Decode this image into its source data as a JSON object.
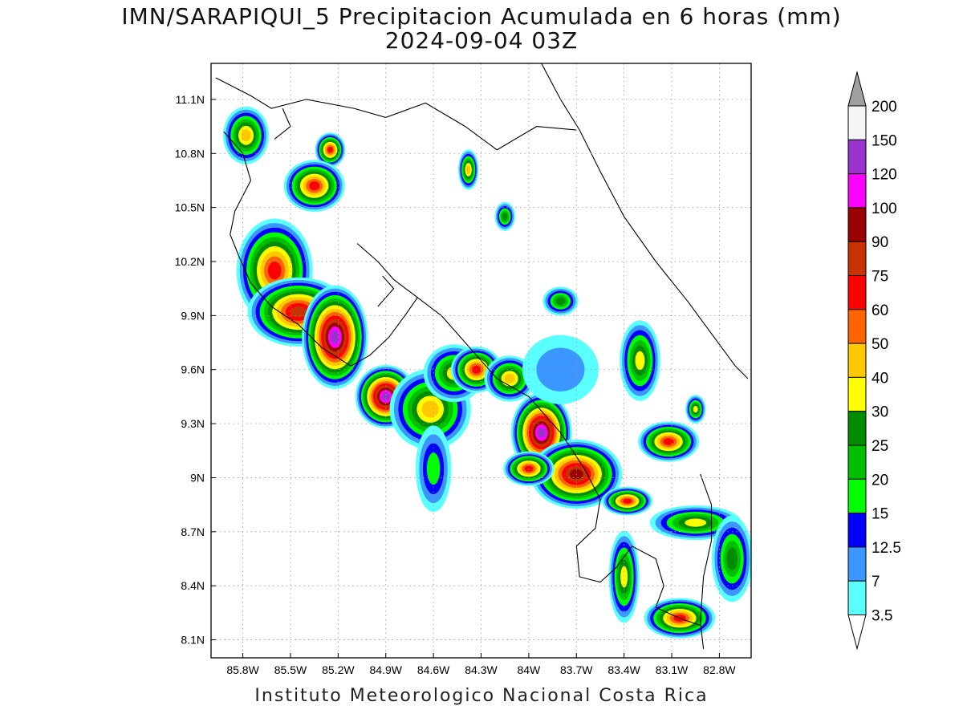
{
  "title": {
    "line1": "IMN/SARAPIQUI_5 Precipitacion Acumulada en 6 horas (mm)",
    "line2": "2024-09-04 03Z"
  },
  "footer": "Instituto Meteorologico Nacional Costa Rica",
  "map": {
    "lon_range": [
      -86.0,
      -82.6
    ],
    "lat_range": [
      8.0,
      11.3
    ],
    "lon_ticks": [
      {
        "value": -85.8,
        "label": "85.8W"
      },
      {
        "value": -85.5,
        "label": "85.5W"
      },
      {
        "value": -85.2,
        "label": "85.2W"
      },
      {
        "value": -84.9,
        "label": "84.9W"
      },
      {
        "value": -84.6,
        "label": "84.6W"
      },
      {
        "value": -84.3,
        "label": "84.3W"
      },
      {
        "value": -84.0,
        "label": "84W"
      },
      {
        "value": -83.7,
        "label": "83.7W"
      },
      {
        "value": -83.4,
        "label": "83.4W"
      },
      {
        "value": -83.1,
        "label": "83.1W"
      },
      {
        "value": -82.8,
        "label": "82.8W"
      }
    ],
    "lat_ticks": [
      {
        "value": 11.1,
        "label": "11.1N"
      },
      {
        "value": 10.8,
        "label": "10.8N"
      },
      {
        "value": 10.5,
        "label": "10.5N"
      },
      {
        "value": 10.2,
        "label": "10.2N"
      },
      {
        "value": 9.9,
        "label": "9.9N"
      },
      {
        "value": 9.6,
        "label": "9.6N"
      },
      {
        "value": 9.3,
        "label": "9.3N"
      },
      {
        "value": 9.0,
        "label": "9N"
      },
      {
        "value": 8.7,
        "label": "8.7N"
      },
      {
        "value": 8.4,
        "label": "8.4N"
      },
      {
        "value": 8.1,
        "label": "8.1N"
      }
    ],
    "grid": "dotted"
  },
  "colorbar": {
    "labels": [
      "200",
      "150",
      "120",
      "100",
      "90",
      "75",
      "60",
      "50",
      "40",
      "30",
      "25",
      "20",
      "15",
      "12.5",
      "7",
      "3.5"
    ],
    "colors": [
      "#f5f5f5",
      "#9a32cd",
      "#ff00ff",
      "#9b0000",
      "#c83200",
      "#ff0000",
      "#ff6400",
      "#ffc800",
      "#ffff00",
      "#008c00",
      "#00be00",
      "#00ff00",
      "#0000ff",
      "#3c96ff",
      "#5affff"
    ],
    "top_arrow_color": "#a0a0a0",
    "bottom_arrow_color": "#ffffff"
  },
  "precip_levels": [
    3.5,
    7,
    12.5,
    15,
    20,
    25,
    30,
    40,
    50,
    60,
    75,
    90,
    100,
    120,
    150,
    200
  ],
  "precip_cells": [
    {
      "lon": -85.78,
      "lat": 10.9,
      "peak": 45,
      "rx": 0.09,
      "ry": 0.1
    },
    {
      "lon": -85.25,
      "lat": 10.82,
      "peak": 65,
      "rx": 0.06,
      "ry": 0.06
    },
    {
      "lon": -85.35,
      "lat": 10.62,
      "peak": 60,
      "rx": 0.12,
      "ry": 0.09
    },
    {
      "lon": -85.6,
      "lat": 10.15,
      "peak": 62,
      "rx": 0.15,
      "ry": 0.18
    },
    {
      "lon": -85.45,
      "lat": 9.92,
      "peak": 80,
      "rx": 0.2,
      "ry": 0.12
    },
    {
      "lon": -85.22,
      "lat": 9.78,
      "peak": 130,
      "rx": 0.13,
      "ry": 0.18
    },
    {
      "lon": -84.9,
      "lat": 9.45,
      "peak": 120,
      "rx": 0.12,
      "ry": 0.11
    },
    {
      "lon": -84.62,
      "lat": 9.38,
      "peak": 40,
      "rx": 0.16,
      "ry": 0.14
    },
    {
      "lon": -84.47,
      "lat": 9.58,
      "peak": 35,
      "rx": 0.12,
      "ry": 0.1
    },
    {
      "lon": -84.33,
      "lat": 9.6,
      "peak": 60,
      "rx": 0.1,
      "ry": 0.08
    },
    {
      "lon": -84.12,
      "lat": 9.55,
      "peak": 45,
      "rx": 0.1,
      "ry": 0.08
    },
    {
      "lon": -83.92,
      "lat": 9.25,
      "peak": 130,
      "rx": 0.12,
      "ry": 0.14
    },
    {
      "lon": -83.7,
      "lat": 9.02,
      "peak": 95,
      "rx": 0.18,
      "ry": 0.12
    },
    {
      "lon": -84.0,
      "lat": 9.05,
      "peak": 60,
      "rx": 0.1,
      "ry": 0.06
    },
    {
      "lon": -83.38,
      "lat": 8.87,
      "peak": 60,
      "rx": 0.1,
      "ry": 0.05
    },
    {
      "lon": -83.12,
      "lat": 9.2,
      "peak": 60,
      "rx": 0.12,
      "ry": 0.07
    },
    {
      "lon": -83.3,
      "lat": 9.65,
      "peak": 35,
      "rx": 0.08,
      "ry": 0.14
    },
    {
      "lon": -82.95,
      "lat": 8.75,
      "peak": 30,
      "rx": 0.18,
      "ry": 0.06
    },
    {
      "lon": -83.05,
      "lat": 8.22,
      "peak": 70,
      "rx": 0.14,
      "ry": 0.07
    },
    {
      "lon": -83.4,
      "lat": 8.45,
      "peak": 35,
      "rx": 0.06,
      "ry": 0.16
    },
    {
      "lon": -84.38,
      "lat": 10.71,
      "peak": 40,
      "rx": 0.04,
      "ry": 0.07
    },
    {
      "lon": -84.15,
      "lat": 10.45,
      "peak": 25,
      "rx": 0.04,
      "ry": 0.05
    },
    {
      "lon": -83.8,
      "lat": 9.98,
      "peak": 25,
      "rx": 0.07,
      "ry": 0.05
    },
    {
      "lon": -84.6,
      "lat": 9.05,
      "peak": 15,
      "rx": 0.07,
      "ry": 0.15
    },
    {
      "lon": -83.8,
      "lat": 9.6,
      "peak": 10,
      "rx": 0.15,
      "ry": 0.12
    },
    {
      "lon": -82.72,
      "lat": 8.55,
      "peak": 25,
      "rx": 0.08,
      "ry": 0.15
    },
    {
      "lon": -82.95,
      "lat": 9.38,
      "peak": 30,
      "rx": 0.04,
      "ry": 0.05
    }
  ]
}
